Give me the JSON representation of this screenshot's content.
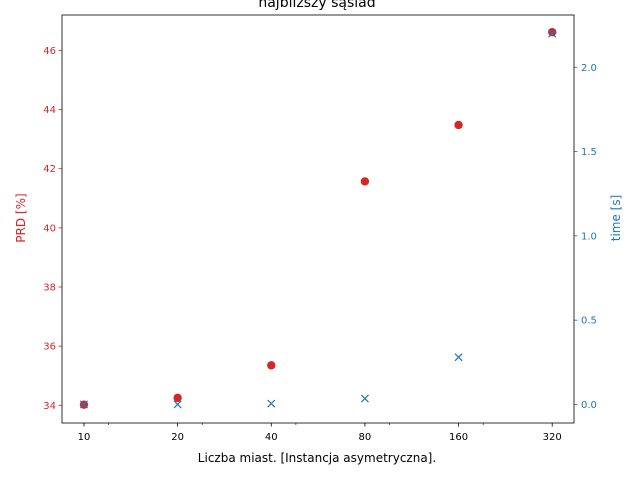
{
  "chart_data": {
    "type": "scatter",
    "title": "najbliższy sąsiad",
    "xlabel": "Liczba miast. [Instancja asymetryczna].",
    "x_scale": "log2",
    "x_ticks": [
      10,
      20,
      40,
      80,
      160,
      320
    ],
    "x_tick_labels": [
      "10",
      "20",
      "40",
      "80",
      "160",
      "320"
    ],
    "x": [
      10,
      20,
      40,
      80,
      160,
      320
    ],
    "left_axis": {
      "label": "PRD [%]",
      "color": "#d62728",
      "ylim": [
        33.4,
        47.2
      ],
      "ticks": [
        34,
        36,
        38,
        40,
        42,
        44,
        46
      ],
      "tick_labels": [
        "34",
        "36",
        "38",
        "40",
        "42",
        "44",
        "46"
      ]
    },
    "right_axis": {
      "label": "time [s]",
      "color": "#1f77b4",
      "ylim": [
        -0.11,
        2.31
      ],
      "ticks": [
        0.0,
        0.5,
        1.0,
        1.5,
        2.0
      ],
      "tick_labels": [
        "0.0",
        "0.5",
        "1.0",
        "1.5",
        "2.0"
      ]
    },
    "series": [
      {
        "axis": "left",
        "marker": "circle",
        "color": "#d62728",
        "values": [
          34.02,
          34.25,
          35.35,
          41.57,
          43.48,
          46.62
        ]
      },
      {
        "axis": "right",
        "marker": "x",
        "color": "#1f77b4",
        "values": [
          0.0,
          0.0,
          0.005,
          0.035,
          0.28,
          2.2
        ]
      }
    ],
    "grid": false,
    "legend": "none"
  }
}
